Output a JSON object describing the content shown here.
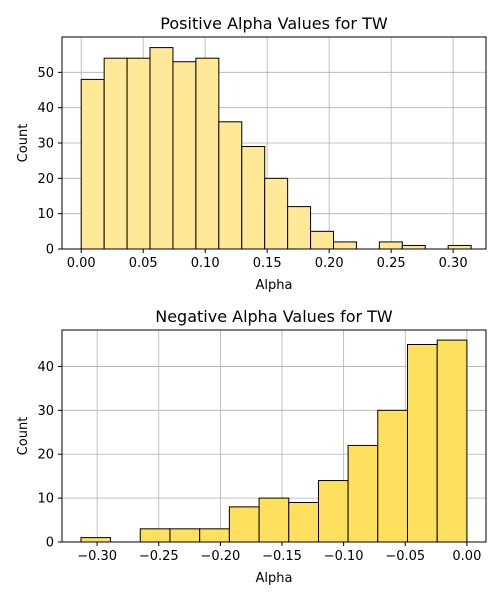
{
  "chart_data": [
    {
      "type": "bar",
      "title": "Positive Alpha Values for TW",
      "xlabel": "Alpha",
      "ylabel": "Count",
      "xlim": [
        -0.0155,
        0.3265
      ],
      "ylim": [
        0,
        60
      ],
      "x_ticks": [
        0.0,
        0.05,
        0.1,
        0.15,
        0.2,
        0.25,
        0.3
      ],
      "x_tick_labels": [
        "0.00",
        "0.05",
        "0.10",
        "0.15",
        "0.20",
        "0.25",
        "0.30"
      ],
      "y_ticks": [
        0,
        10,
        20,
        30,
        40,
        50
      ],
      "y_tick_labels": [
        "0",
        "10",
        "20",
        "30",
        "40",
        "50"
      ],
      "grid": true,
      "bar_color": "#ffe897",
      "edge_color": "#000000",
      "bins": [
        {
          "x0": 0.0,
          "x1": 0.0185,
          "count": 48
        },
        {
          "x0": 0.0185,
          "x1": 0.037,
          "count": 54
        },
        {
          "x0": 0.037,
          "x1": 0.0555,
          "count": 54
        },
        {
          "x0": 0.0555,
          "x1": 0.074,
          "count": 57
        },
        {
          "x0": 0.074,
          "x1": 0.0925,
          "count": 53
        },
        {
          "x0": 0.0925,
          "x1": 0.111,
          "count": 54
        },
        {
          "x0": 0.111,
          "x1": 0.1295,
          "count": 36
        },
        {
          "x0": 0.1295,
          "x1": 0.148,
          "count": 29
        },
        {
          "x0": 0.148,
          "x1": 0.1665,
          "count": 20
        },
        {
          "x0": 0.1665,
          "x1": 0.185,
          "count": 12
        },
        {
          "x0": 0.185,
          "x1": 0.2035,
          "count": 5
        },
        {
          "x0": 0.2035,
          "x1": 0.222,
          "count": 2
        },
        {
          "x0": 0.222,
          "x1": 0.2405,
          "count": 0
        },
        {
          "x0": 0.2405,
          "x1": 0.259,
          "count": 2
        },
        {
          "x0": 0.259,
          "x1": 0.2775,
          "count": 1
        },
        {
          "x0": 0.2775,
          "x1": 0.296,
          "count": 0
        },
        {
          "x0": 0.296,
          "x1": 0.3145,
          "count": 1
        }
      ]
    },
    {
      "type": "bar",
      "title": "Negative Alpha Values for TW",
      "xlabel": "Alpha",
      "ylabel": "Count",
      "xlim": [
        -0.3285,
        0.0155
      ],
      "ylim": [
        0,
        48.3
      ],
      "x_ticks": [
        -0.3,
        -0.25,
        -0.2,
        -0.15,
        -0.1,
        -0.05,
        0.0
      ],
      "x_tick_labels": [
        "−0.30",
        "−0.25",
        "−0.20",
        "−0.15",
        "−0.10",
        "−0.05",
        "0.00"
      ],
      "y_ticks": [
        0,
        10,
        20,
        30,
        40
      ],
      "y_tick_labels": [
        "0",
        "10",
        "20",
        "30",
        "40"
      ],
      "grid": true,
      "bar_color": "#ffdf5e",
      "edge_color": "#000000",
      "bins": [
        {
          "x0": -0.3131,
          "x1": -0.2891,
          "count": 1
        },
        {
          "x0": -0.2891,
          "x1": -0.265,
          "count": 0
        },
        {
          "x0": -0.265,
          "x1": -0.2409,
          "count": 3
        },
        {
          "x0": -0.2409,
          "x1": -0.2168,
          "count": 3
        },
        {
          "x0": -0.2168,
          "x1": -0.1927,
          "count": 3
        },
        {
          "x0": -0.1927,
          "x1": -0.1686,
          "count": 8
        },
        {
          "x0": -0.1686,
          "x1": -0.1445,
          "count": 10
        },
        {
          "x0": -0.1445,
          "x1": -0.1204,
          "count": 9
        },
        {
          "x0": -0.1204,
          "x1": -0.0964,
          "count": 14
        },
        {
          "x0": -0.0964,
          "x1": -0.0723,
          "count": 22
        },
        {
          "x0": -0.0723,
          "x1": -0.0482,
          "count": 30
        },
        {
          "x0": -0.0482,
          "x1": -0.0241,
          "count": 45
        },
        {
          "x0": -0.0241,
          "x1": 0.0,
          "count": 46
        }
      ]
    }
  ]
}
